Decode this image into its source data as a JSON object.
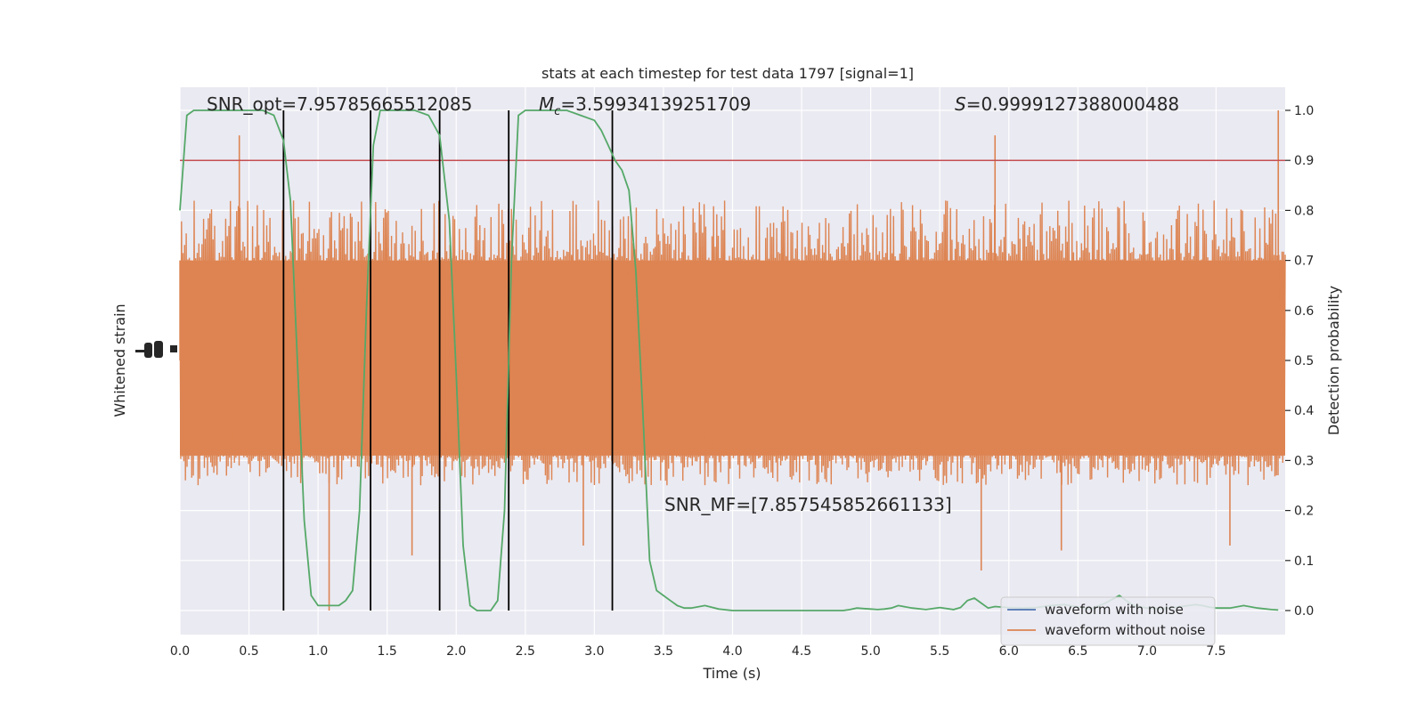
{
  "chart_data": {
    "type": "line",
    "title": "stats at each timestep for test data 1797 [signal=1]",
    "xlabel": "Time (s)",
    "ylabel_left": "Whitened strain",
    "ylabel_right": "Detection probability",
    "xlim": [
      0.0,
      8.0
    ],
    "ylim_right": [
      -0.05,
      1.05
    ],
    "xticks": [
      "0.0",
      "0.5",
      "1.0",
      "1.5",
      "2.0",
      "2.5",
      "3.0",
      "3.5",
      "4.0",
      "4.5",
      "5.0",
      "5.5",
      "6.0",
      "6.5",
      "7.0",
      "7.5"
    ],
    "yticks_right": [
      "0.0",
      "0.1",
      "0.2",
      "0.3",
      "0.4",
      "0.5",
      "0.6",
      "0.7",
      "0.8",
      "0.9",
      "1.0"
    ],
    "grid": true,
    "legend_position": "lower right",
    "legend": [
      {
        "label": "waveform with noise",
        "color": "#4c72b0"
      },
      {
        "label": "waveform without noise",
        "color": "#dd8452"
      }
    ],
    "annotations": {
      "snr_opt": "SNR_opt=7.95785665512085",
      "mc_symbol": "M",
      "mc_subscript": "c",
      "mc_value": "=3.59934139251709",
      "s_symbol": "S",
      "s_value": "=0.9999127388000488",
      "snr_mf": "SNR_MF=[7.857545852661133]"
    },
    "threshold": {
      "value": 0.9,
      "color": "#c44e52"
    },
    "vertical_lines": [
      0.75,
      1.38,
      1.88,
      2.38,
      3.13
    ],
    "detection_probability": {
      "name": "detection probability",
      "color": "#55a868",
      "x": [
        0.0,
        0.05,
        0.1,
        0.15,
        0.2,
        0.3,
        0.4,
        0.5,
        0.6,
        0.68,
        0.75,
        0.8,
        0.85,
        0.9,
        0.95,
        1.0,
        1.05,
        1.1,
        1.15,
        1.2,
        1.25,
        1.3,
        1.35,
        1.4,
        1.45,
        1.5,
        1.55,
        1.6,
        1.7,
        1.8,
        1.88,
        1.95,
        2.0,
        2.05,
        2.1,
        2.15,
        2.2,
        2.25,
        2.3,
        2.35,
        2.4,
        2.45,
        2.5,
        2.55,
        2.6,
        2.7,
        2.8,
        2.9,
        3.0,
        3.05,
        3.1,
        3.15,
        3.2,
        3.25,
        3.3,
        3.35,
        3.4,
        3.45,
        3.5,
        3.55,
        3.6,
        3.65,
        3.7,
        3.8,
        3.9,
        4.0,
        4.1,
        4.2,
        4.3,
        4.4,
        4.5,
        4.6,
        4.7,
        4.8,
        4.85,
        4.9,
        4.95,
        5.0,
        5.05,
        5.1,
        5.15,
        5.2,
        5.3,
        5.4,
        5.5,
        5.6,
        5.65,
        5.7,
        5.75,
        5.8,
        5.85,
        5.9,
        5.95,
        6.0,
        6.1,
        6.2,
        6.3,
        6.4,
        6.5,
        6.6,
        6.7,
        6.8,
        6.85,
        6.9,
        7.0,
        7.1,
        7.2,
        7.3,
        7.35,
        7.4,
        7.45,
        7.5,
        7.6,
        7.7,
        7.8,
        7.9,
        7.95
      ],
      "y": [
        0.8,
        0.99,
        1.0,
        1.0,
        1.0,
        1.0,
        1.0,
        1.0,
        1.0,
        0.99,
        0.94,
        0.82,
        0.5,
        0.18,
        0.03,
        0.01,
        0.01,
        0.01,
        0.01,
        0.02,
        0.04,
        0.2,
        0.6,
        0.93,
        1.0,
        1.0,
        1.0,
        1.0,
        1.0,
        0.99,
        0.95,
        0.78,
        0.47,
        0.13,
        0.01,
        0.0,
        0.0,
        0.0,
        0.02,
        0.2,
        0.7,
        0.99,
        1.0,
        1.0,
        1.0,
        1.0,
        1.0,
        0.99,
        0.98,
        0.96,
        0.93,
        0.9,
        0.88,
        0.84,
        0.68,
        0.4,
        0.1,
        0.04,
        0.03,
        0.02,
        0.01,
        0.005,
        0.005,
        0.01,
        0.003,
        0.0,
        0.0,
        0.0,
        0.0,
        0.0,
        0.0,
        0.0,
        0.0,
        0.0,
        0.002,
        0.005,
        0.004,
        0.003,
        0.002,
        0.003,
        0.005,
        0.01,
        0.005,
        0.002,
        0.006,
        0.002,
        0.006,
        0.02,
        0.025,
        0.015,
        0.005,
        0.008,
        0.007,
        0.006,
        0.005,
        0.006,
        0.01,
        0.012,
        0.007,
        0.004,
        0.015,
        0.03,
        0.02,
        0.01,
        0.005,
        0.004,
        0.006,
        0.01,
        0.012,
        0.01,
        0.007,
        0.005,
        0.005,
        0.01,
        0.005,
        0.002,
        0.001
      ]
    },
    "waveform_without_noise": {
      "name": "waveform without noise",
      "color": "#dd8452",
      "duration": 8.0,
      "core_band": [
        -1,
        1
      ],
      "envelope_detection_axis": [
        0.25,
        0.82
      ],
      "peaks": [
        {
          "x": 0.43,
          "y": 0.95
        },
        {
          "x": 1.08,
          "y": 0.0
        },
        {
          "x": 1.68,
          "y": 0.11
        },
        {
          "x": 2.92,
          "y": 0.13
        },
        {
          "x": 5.9,
          "y": 0.95
        },
        {
          "x": 5.8,
          "y": 0.08
        },
        {
          "x": 6.38,
          "y": 0.12
        },
        {
          "x": 7.6,
          "y": 0.13
        },
        {
          "x": 7.95,
          "y": 1.0
        }
      ]
    }
  }
}
